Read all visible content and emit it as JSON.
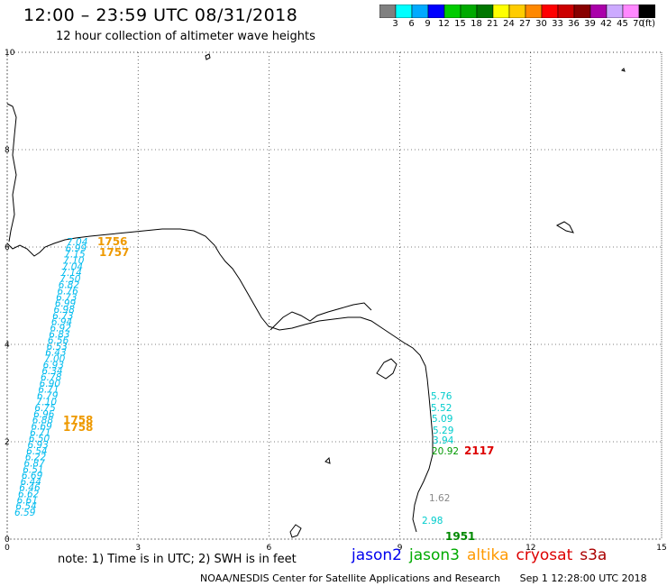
{
  "header": {
    "title": "12:00 – 23:59 UTC 08/31/2018",
    "subtitle": "12 hour collection of altimeter wave heights"
  },
  "color_scale": {
    "labels": [
      "3",
      "6",
      "9",
      "12",
      "15",
      "18",
      "21",
      "24",
      "27",
      "30",
      "33",
      "36",
      "39",
      "42",
      "45",
      "70"
    ],
    "unit": "(ft)",
    "colors": [
      "#808080",
      "#00ffff",
      "#00aaff",
      "#0000ff",
      "#00cc00",
      "#00aa00",
      "#007700",
      "#ffff00",
      "#ffcc00",
      "#ff8800",
      "#ff0000",
      "#cc0000",
      "#880000",
      "#aa00aa",
      "#ccaaff",
      "#ff88ff",
      "#000000"
    ]
  },
  "axes": {
    "x_ticks": [
      "0",
      "3",
      "6",
      "9",
      "12",
      "15"
    ],
    "y_ticks": [
      "0",
      "2",
      "4",
      "6",
      "8",
      "10"
    ]
  },
  "west_track": {
    "color": "#00bbee",
    "values": [
      "7.04",
      "6.99",
      "7.15",
      "7.10",
      "7.04",
      "7.14",
      "7.50",
      "6.82",
      "6.76",
      "6.73",
      "6.99",
      "6.98",
      "6.73",
      "6.94",
      "6.92",
      "6.83",
      "6.56",
      "6.53",
      "6.43",
      "7.00",
      "6.93",
      "6.34",
      "6.78",
      "6.90",
      "6.71",
      "6.79",
      "7.10",
      "6.75",
      "6.96",
      "6.88",
      "6.69",
      "6.71",
      "6.50",
      "6.93",
      "6.54",
      "6.22",
      "6.87",
      "6.51",
      "6.69",
      "6.44",
      "6.46",
      "6.62",
      "6.61",
      "6.54",
      "6.59"
    ]
  },
  "altika_labels": [
    {
      "text": "1756",
      "color": "#ee9900"
    },
    {
      "text": "1757",
      "color": "#ee9900"
    },
    {
      "text": "1758",
      "color": "#ee9900"
    },
    {
      "text": "1758",
      "color": "#ee9900"
    }
  ],
  "east_track": {
    "values": [
      {
        "text": "5.76",
        "color": "#00cccc"
      },
      {
        "text": "5.52",
        "color": "#00cccc"
      },
      {
        "text": "5.09",
        "color": "#00cccc"
      },
      {
        "text": "5.29",
        "color": "#00cccc"
      },
      {
        "text": "3.94",
        "color": "#00cccc"
      },
      {
        "text": "20.92",
        "color": "#009900"
      },
      {
        "text": "2117",
        "color": "#dd0000"
      },
      {
        "text": "1.62",
        "color": "#888888"
      },
      {
        "text": "2.98",
        "color": "#00cccc"
      },
      {
        "text": "1951",
        "color": "#008800"
      }
    ]
  },
  "note": "note:  1) Time is in UTC;  2) SWH is in feet",
  "legend": [
    {
      "name": "jason2",
      "color": "#0000ee"
    },
    {
      "name": "jason3",
      "color": "#00aa00"
    },
    {
      "name": "altika",
      "color": "#ff9900"
    },
    {
      "name": "cryosat",
      "color": "#dd0000"
    },
    {
      "name": "s3a",
      "color": "#aa0000"
    }
  ],
  "footer": {
    "source": "NOAA/NESDIS Center for Satellite Applications and Research",
    "timestamp": "Sep  1 12:28:00 UTC 2018"
  }
}
